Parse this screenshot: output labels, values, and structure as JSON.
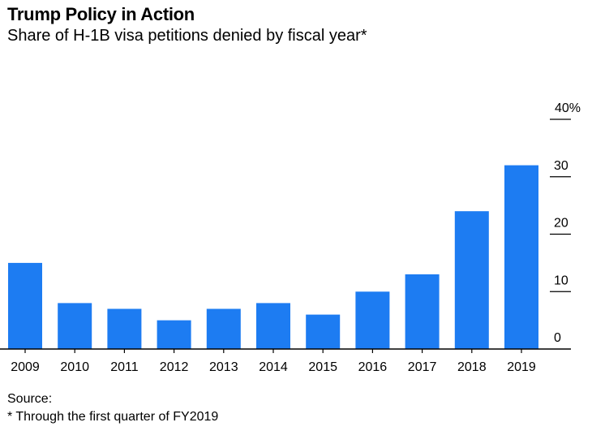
{
  "header": {
    "title": "Trump Policy in Action",
    "subtitle": "Share of H-1B visa petitions denied by fiscal year*"
  },
  "footer": {
    "source": "Source:",
    "note": "* Through the first quarter of FY2019"
  },
  "colors": {
    "bar": "#1d7cf2",
    "axis": "#000000"
  },
  "chart_data": {
    "type": "bar",
    "title": "Trump Policy in Action",
    "subtitle": "Share of H-1B visa petitions denied by fiscal year*",
    "categories": [
      "2009",
      "2010",
      "2011",
      "2012",
      "2013",
      "2014",
      "2015",
      "2016",
      "2017",
      "2018",
      "2019"
    ],
    "values": [
      15,
      8,
      7,
      5,
      7,
      8,
      6,
      10,
      13,
      24,
      32
    ],
    "ylim": [
      0,
      40
    ],
    "yticks": [
      0,
      10,
      20,
      30,
      40
    ],
    "ytick_labels": [
      "0",
      "10",
      "20",
      "30",
      "40%"
    ],
    "yaxis_position": "right",
    "grid": false,
    "xlabel": "",
    "ylabel": ""
  }
}
